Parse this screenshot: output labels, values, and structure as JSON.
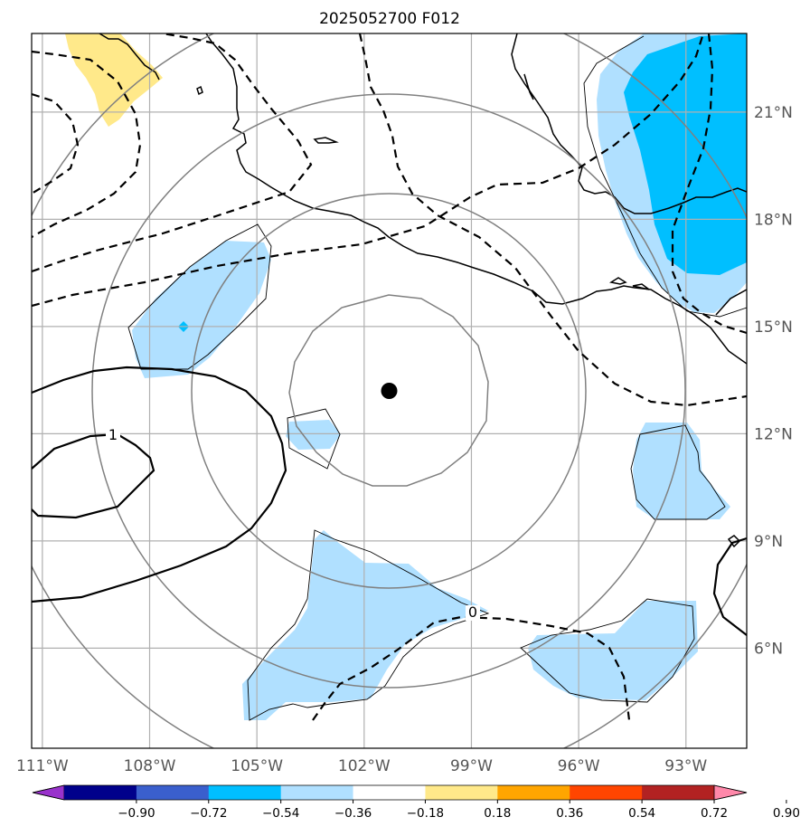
{
  "chart_data": {
    "type": "map",
    "title": "2025052700 F012",
    "x_ticks": [
      "111°W",
      "108°W",
      "105°W",
      "102°W",
      "99°W",
      "96°W",
      "93°W"
    ],
    "x_tick_values": [
      -111,
      -108,
      -105,
      -102,
      -99,
      -96,
      -93
    ],
    "y_ticks": [
      "6°N",
      "9°N",
      "12°N",
      "15°N",
      "18°N",
      "21°N"
    ],
    "y_tick_values": [
      6,
      9,
      12,
      15,
      18,
      21
    ],
    "lon_range": [
      -111.3,
      -91.3
    ],
    "lat_range": [
      3.2,
      23.2
    ],
    "grid": true,
    "center_marker": {
      "lon": -101.3,
      "lat": 13.2
    },
    "range_rings": 4,
    "contour_labels": [
      "1",
      "0"
    ],
    "colorbar": {
      "ticks": [
        "−0.90",
        "−0.72",
        "−0.54",
        "−0.36",
        "−0.18",
        "0.18",
        "0.36",
        "0.54",
        "0.72",
        "0.90"
      ],
      "bounds": [
        -0.9,
        -0.72,
        -0.54,
        -0.36,
        -0.18,
        0.18,
        0.36,
        0.54,
        0.72,
        0.9
      ],
      "colors": [
        "#9932cc",
        "#00008b",
        "#3a5fcd",
        "#00bfff",
        "#b0e0ff",
        "#ffffff",
        "#ffe98a",
        "#ffa500",
        "#ff4500",
        "#b22222",
        "#ff88aa"
      ],
      "extend": "both"
    }
  }
}
